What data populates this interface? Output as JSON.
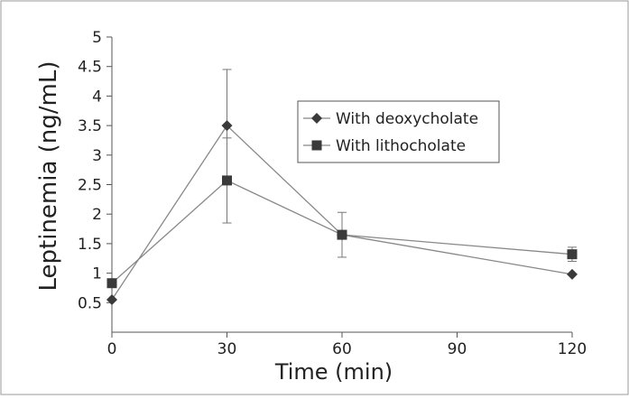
{
  "chart_data": {
    "type": "line",
    "xlabel": "Time (min)",
    "ylabel": "Leptinemia (ng/mL)",
    "x_ticks": [
      "0",
      "30",
      "60",
      "90",
      "120"
    ],
    "y_ticks": [
      "0.5",
      "1",
      "1.5",
      "2",
      "2.5",
      "3",
      "3.5",
      "4",
      "4.5",
      "5"
    ],
    "xlim": [
      0,
      120
    ],
    "ylim": [
      0,
      5
    ],
    "grid": false,
    "legend_position": "top-right",
    "x": [
      0,
      30,
      60,
      120
    ],
    "series": [
      {
        "name": "With deoxycholate",
        "marker": "diamond",
        "values": [
          0.55,
          3.5,
          1.65,
          0.98
        ],
        "error": [
          0,
          0.95,
          0.38,
          0
        ]
      },
      {
        "name": "With lithocholate",
        "marker": "square",
        "values": [
          0.83,
          2.57,
          1.65,
          1.32
        ],
        "error": [
          0,
          0.72,
          0,
          0.12
        ]
      }
    ],
    "colors": {
      "line": "#888888",
      "marker": "#3a3a3a",
      "axis": "#555555",
      "frame": "#999999"
    }
  }
}
